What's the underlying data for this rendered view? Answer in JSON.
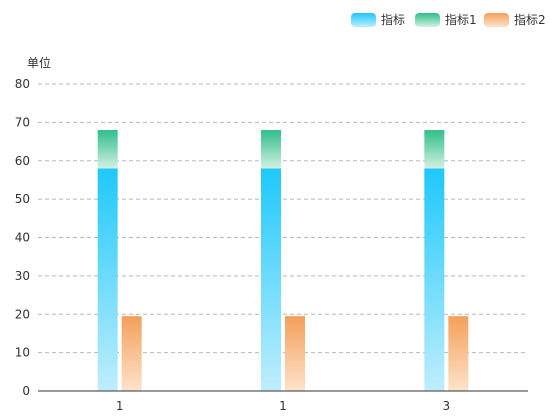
{
  "chart_data": {
    "type": "bar",
    "ylabel": "单位",
    "categories": [
      "1",
      "1",
      "3"
    ],
    "ylim": [
      0,
      80
    ],
    "yticks": [
      0,
      10,
      20,
      30,
      40,
      50,
      60,
      70,
      80
    ],
    "grid": true,
    "legend_position": "top-right",
    "series": [
      {
        "name": "指标",
        "values": [
          58,
          58,
          58
        ],
        "color_top": "#1ec8fb",
        "color_bottom": "#bfeefd",
        "stack": "main"
      },
      {
        "name": "指标1",
        "values": [
          10,
          10,
          10
        ],
        "color_top": "#2ebf8a",
        "color_bottom": "#d3f0e4",
        "stack": "main"
      },
      {
        "name": "指标2",
        "values": [
          19.5,
          19.5,
          19.5
        ],
        "color_top": "#f4a05a",
        "color_bottom": "#fde3cb",
        "stack": "side"
      }
    ]
  }
}
